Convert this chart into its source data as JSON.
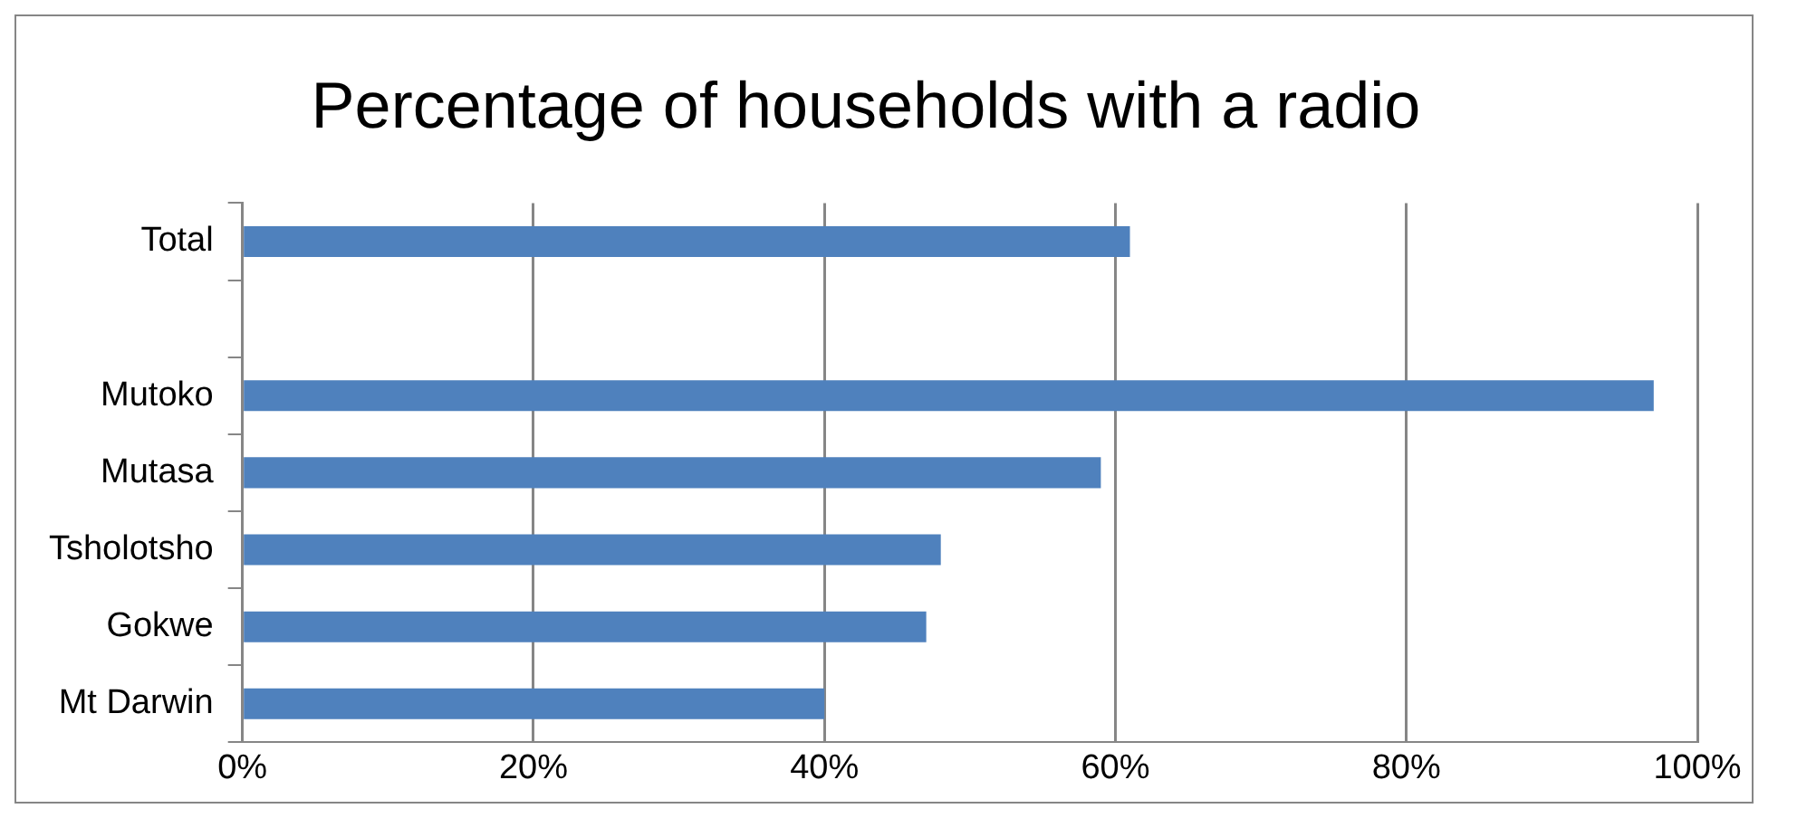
{
  "chart_data": {
    "type": "bar",
    "orientation": "horizontal",
    "title": "Percentage of households with a radio",
    "categories": [
      "Total",
      null,
      "Mutoko",
      "Mutasa",
      "Tsholotsho",
      "Gokwe",
      "Mt Darwin"
    ],
    "values": [
      61,
      null,
      97,
      59,
      48,
      47,
      40
    ],
    "color": "#4f81bd",
    "xlim": [
      0,
      100
    ],
    "xticks": [
      {
        "value": 0,
        "label": "0%"
      },
      {
        "value": 20,
        "label": "20%"
      },
      {
        "value": 40,
        "label": "40%"
      },
      {
        "value": 60,
        "label": "60%"
      },
      {
        "value": 80,
        "label": "80%"
      },
      {
        "value": 100,
        "label": "100%"
      }
    ],
    "grid": "x",
    "legend": false
  }
}
